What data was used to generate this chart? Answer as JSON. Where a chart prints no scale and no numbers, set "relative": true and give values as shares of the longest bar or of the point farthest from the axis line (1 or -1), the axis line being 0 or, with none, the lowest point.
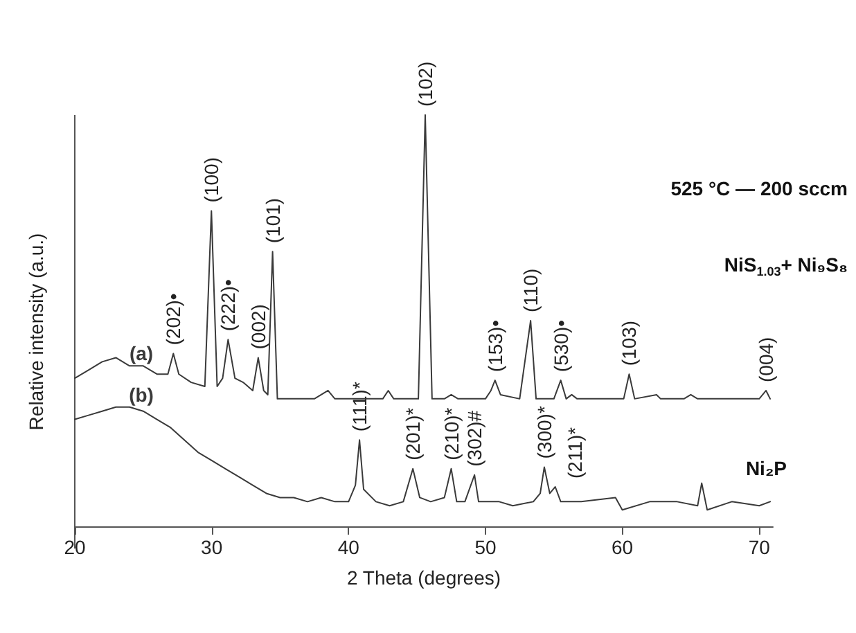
{
  "chart_data": {
    "type": "line",
    "title": "525 °C — 200 sccm",
    "xlabel": "2 Theta (degrees)",
    "ylabel": "Relative intensity (a.u.)",
    "relative": true,
    "xlim": [
      20,
      71
    ],
    "xticks": [
      20,
      30,
      40,
      50,
      60,
      70
    ],
    "grid": false,
    "legend": false,
    "marker": "none",
    "line_style": "solid",
    "series": [
      {
        "name": "(a)",
        "color": "#3a3a3a",
        "x": [
          20,
          21,
          22,
          23,
          24,
          25,
          26,
          26.8,
          27.2,
          27.6,
          28.5,
          29.5,
          29.98,
          30.4,
          30.8,
          31.2,
          31.7,
          32.3,
          33,
          33.4,
          33.8,
          34.1,
          34.45,
          34.8,
          36,
          37.5,
          38.5,
          39,
          40,
          41.5,
          42.5,
          42.9,
          43.3,
          45.1,
          45.6,
          46.1,
          47,
          47.5,
          48,
          50,
          50.4,
          50.7,
          51.1,
          52.5,
          53.3,
          53.7,
          55,
          55.5,
          55.9,
          56.3,
          56.7,
          59,
          60.1,
          60.5,
          60.9,
          62.5,
          62.8,
          64.5,
          65,
          65.5,
          70,
          70.5,
          70.8
        ],
        "values": [
          0.36,
          0.38,
          0.4,
          0.41,
          0.39,
          0.39,
          0.37,
          0.37,
          0.42,
          0.37,
          0.35,
          0.34,
          0.767,
          0.34,
          0.36,
          0.454,
          0.36,
          0.35,
          0.33,
          0.41,
          0.33,
          0.32,
          0.668,
          0.31,
          0.31,
          0.31,
          0.33,
          0.31,
          0.31,
          0.31,
          0.31,
          0.33,
          0.31,
          0.31,
          1,
          0.31,
          0.31,
          0.32,
          0.31,
          0.31,
          0.33,
          0.355,
          0.32,
          0.31,
          0.5,
          0.31,
          0.31,
          0.355,
          0.31,
          0.32,
          0.31,
          0.31,
          0.31,
          0.37,
          0.31,
          0.32,
          0.31,
          0.31,
          0.32,
          0.31,
          0.31,
          0.33,
          0.31
        ]
      },
      {
        "name": "(b)",
        "color": "#3a3a3a",
        "x": [
          20,
          21,
          22,
          23,
          24,
          25,
          26,
          27,
          28,
          29,
          30,
          31,
          32,
          33,
          34,
          35,
          36,
          37,
          38,
          39,
          40,
          40.5,
          40.8,
          41.1,
          42,
          43,
          44,
          44.7,
          45.2,
          46,
          47,
          47.5,
          47.9,
          48.5,
          49.2,
          49.5,
          51,
          52,
          53.5,
          54,
          54.3,
          54.7,
          55.1,
          55.5,
          57,
          59.5,
          60,
          62,
          64,
          65.5,
          65.8,
          66.2,
          68,
          70,
          70.8
        ],
        "values": [
          0.26,
          0.27,
          0.28,
          0.29,
          0.29,
          0.28,
          0.26,
          0.24,
          0.21,
          0.18,
          0.16,
          0.14,
          0.12,
          0.1,
          0.08,
          0.07,
          0.07,
          0.06,
          0.07,
          0.06,
          0.06,
          0.1,
          0.21,
          0.09,
          0.06,
          0.05,
          0.06,
          0.14,
          0.07,
          0.06,
          0.07,
          0.14,
          0.06,
          0.06,
          0.125,
          0.06,
          0.06,
          0.05,
          0.06,
          0.08,
          0.144,
          0.08,
          0.096,
          0.06,
          0.06,
          0.07,
          0.04,
          0.06,
          0.06,
          0.05,
          0.105,
          0.04,
          0.06,
          0.05,
          0.06
        ]
      }
    ],
    "annotations": [
      "NiS$_{1.03}$+ Ni₉S₈",
      "Ni₂P",
      {
        "text": "(202)•",
        "x": 27.2,
        "y": 0.42
      },
      {
        "text": "(100)",
        "x": 29.98,
        "y": 0.767
      },
      {
        "text": "(222)•",
        "x": 31.2,
        "y": 0.454
      },
      {
        "text": "(002)",
        "x": 33.4,
        "y": 0.41
      },
      {
        "text": "(101)",
        "x": 34.45,
        "y": 0.668
      },
      {
        "text": "(102)",
        "x": 45.6,
        "y": 1
      },
      {
        "text": "(153)•",
        "x": 50.7,
        "y": 0.355
      },
      {
        "text": "(110)",
        "x": 53.3,
        "y": 0.5
      },
      {
        "text": "(530)•",
        "x": 55.5,
        "y": 0.355
      },
      {
        "text": "(103)",
        "x": 60.5,
        "y": 0.37
      },
      {
        "text": "(004)",
        "x": 70.5,
        "y": 0.33
      },
      {
        "text": "(111)*",
        "x": 40.8,
        "y": 0.21
      },
      {
        "text": "(201)*",
        "x": 44.7,
        "y": 0.14
      },
      {
        "text": "(210)*",
        "x": 47.5,
        "y": 0.14
      },
      {
        "text": "(302)#",
        "x": 49.2,
        "y": 0.125
      },
      {
        "text": "(300)*",
        "x": 54.3,
        "y": 0.144
      },
      {
        "text": "(211)*",
        "x": 55.1,
        "y": 0.096
      }
    ]
  }
}
